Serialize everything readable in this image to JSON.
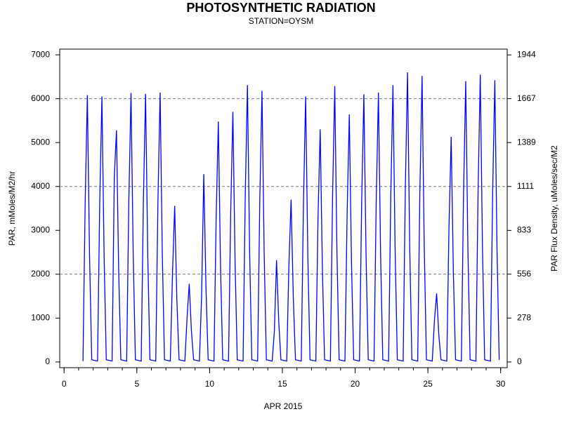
{
  "chart_data": {
    "type": "line",
    "title": "PHOTOSYNTHETIC RADIATION",
    "subtitle": "STATION=OYSM",
    "x_label": "APR 2015",
    "y_label": "PAR, mMoles/M2/hr",
    "y2_label": "PAR Flux Density, uMoles/sec/M2",
    "xlim": [
      -0.3,
      30.45
    ],
    "xticks": [
      0,
      5,
      10,
      15,
      20,
      25,
      30
    ],
    "xminorticks": [
      0,
      1,
      2,
      3,
      4,
      5,
      6,
      7,
      8,
      9,
      10,
      11,
      12,
      13,
      14,
      15,
      16,
      17,
      18,
      19,
      20,
      21,
      22,
      23,
      24,
      25,
      26,
      27,
      28,
      29,
      30
    ],
    "ylim": [
      -130,
      7130
    ],
    "yticks": [
      0,
      1000,
      2000,
      3000,
      4000,
      5000,
      6000,
      7000
    ],
    "y2lim": [
      -36.1,
      1980.6
    ],
    "y2ticks": [
      0,
      278,
      556,
      833,
      1111,
      1389,
      1667,
      1944
    ],
    "gridlines": [
      2000,
      4000,
      6000
    ],
    "x": [
      1.3,
      1.45,
      1.6,
      1.75,
      1.9,
      2.3,
      2.45,
      2.6,
      2.75,
      2.9,
      3.3,
      3.45,
      3.6,
      3.75,
      3.9,
      4.3,
      4.45,
      4.6,
      4.75,
      4.9,
      5.3,
      5.45,
      5.6,
      5.75,
      5.9,
      6.3,
      6.45,
      6.6,
      6.75,
      6.9,
      7.3,
      7.45,
      7.6,
      7.75,
      7.9,
      8.3,
      8.45,
      8.6,
      8.75,
      8.9,
      9.3,
      9.45,
      9.6,
      9.75,
      9.9,
      10.3,
      10.45,
      10.6,
      10.75,
      10.9,
      11.3,
      11.45,
      11.6,
      11.75,
      11.9,
      12.3,
      12.45,
      12.6,
      12.75,
      12.9,
      13.3,
      13.45,
      13.6,
      13.75,
      13.9,
      14.3,
      14.45,
      14.6,
      14.75,
      14.9,
      15.3,
      15.45,
      15.6,
      15.75,
      15.9,
      16.3,
      16.45,
      16.6,
      16.75,
      16.9,
      17.3,
      17.45,
      17.6,
      17.75,
      17.9,
      18.3,
      18.45,
      18.6,
      18.75,
      18.9,
      19.3,
      19.45,
      19.6,
      19.75,
      19.9,
      20.3,
      20.45,
      20.6,
      20.75,
      20.9,
      21.3,
      21.45,
      21.6,
      21.75,
      21.9,
      22.3,
      22.45,
      22.6,
      22.75,
      22.9,
      23.3,
      23.45,
      23.6,
      23.75,
      23.9,
      24.3,
      24.45,
      24.6,
      24.75,
      24.9,
      25.3,
      25.45,
      25.6,
      25.75,
      25.9,
      26.3,
      26.45,
      26.6,
      26.75,
      26.9,
      27.3,
      27.45,
      27.6,
      27.75,
      27.9,
      28.3,
      28.45,
      28.6,
      28.75,
      28.9,
      29.3,
      29.45,
      29.6,
      29.75,
      29.9
    ],
    "series": [
      {
        "color": "#0000ff",
        "values": [
          20,
          3650,
          6080,
          2430,
          50,
          20,
          3630,
          6050,
          2420,
          50,
          20,
          4200,
          5280,
          2110,
          50,
          20,
          3680,
          6130,
          2450,
          50,
          20,
          3670,
          6110,
          2440,
          50,
          20,
          3680,
          6140,
          2460,
          50,
          20,
          2000,
          3560,
          1420,
          50,
          20,
          1000,
          1780,
          710,
          50,
          20,
          1500,
          4280,
          1710,
          50,
          20,
          3290,
          5480,
          2190,
          50,
          20,
          3420,
          5700,
          2280,
          50,
          20,
          3790,
          6310,
          2520,
          50,
          20,
          3710,
          6180,
          2470,
          50,
          20,
          700,
          2320,
          930,
          50,
          20,
          2220,
          3700,
          1480,
          50,
          20,
          3630,
          6050,
          2420,
          50,
          20,
          3300,
          5300,
          2120,
          50,
          20,
          3770,
          6290,
          2520,
          50,
          20,
          3380,
          5640,
          2260,
          50,
          20,
          3660,
          6100,
          2440,
          50,
          20,
          3680,
          6140,
          2460,
          50,
          20,
          3790,
          6310,
          2520,
          50,
          20,
          3960,
          6600,
          2640,
          50,
          20,
          3910,
          6520,
          2610,
          50,
          20,
          940,
          1560,
          620,
          50,
          20,
          3080,
          5130,
          2050,
          50,
          20,
          3840,
          6400,
          2560,
          50,
          20,
          3930,
          6550,
          2620,
          50,
          20,
          3850,
          6420,
          2570,
          50
        ]
      }
    ]
  }
}
